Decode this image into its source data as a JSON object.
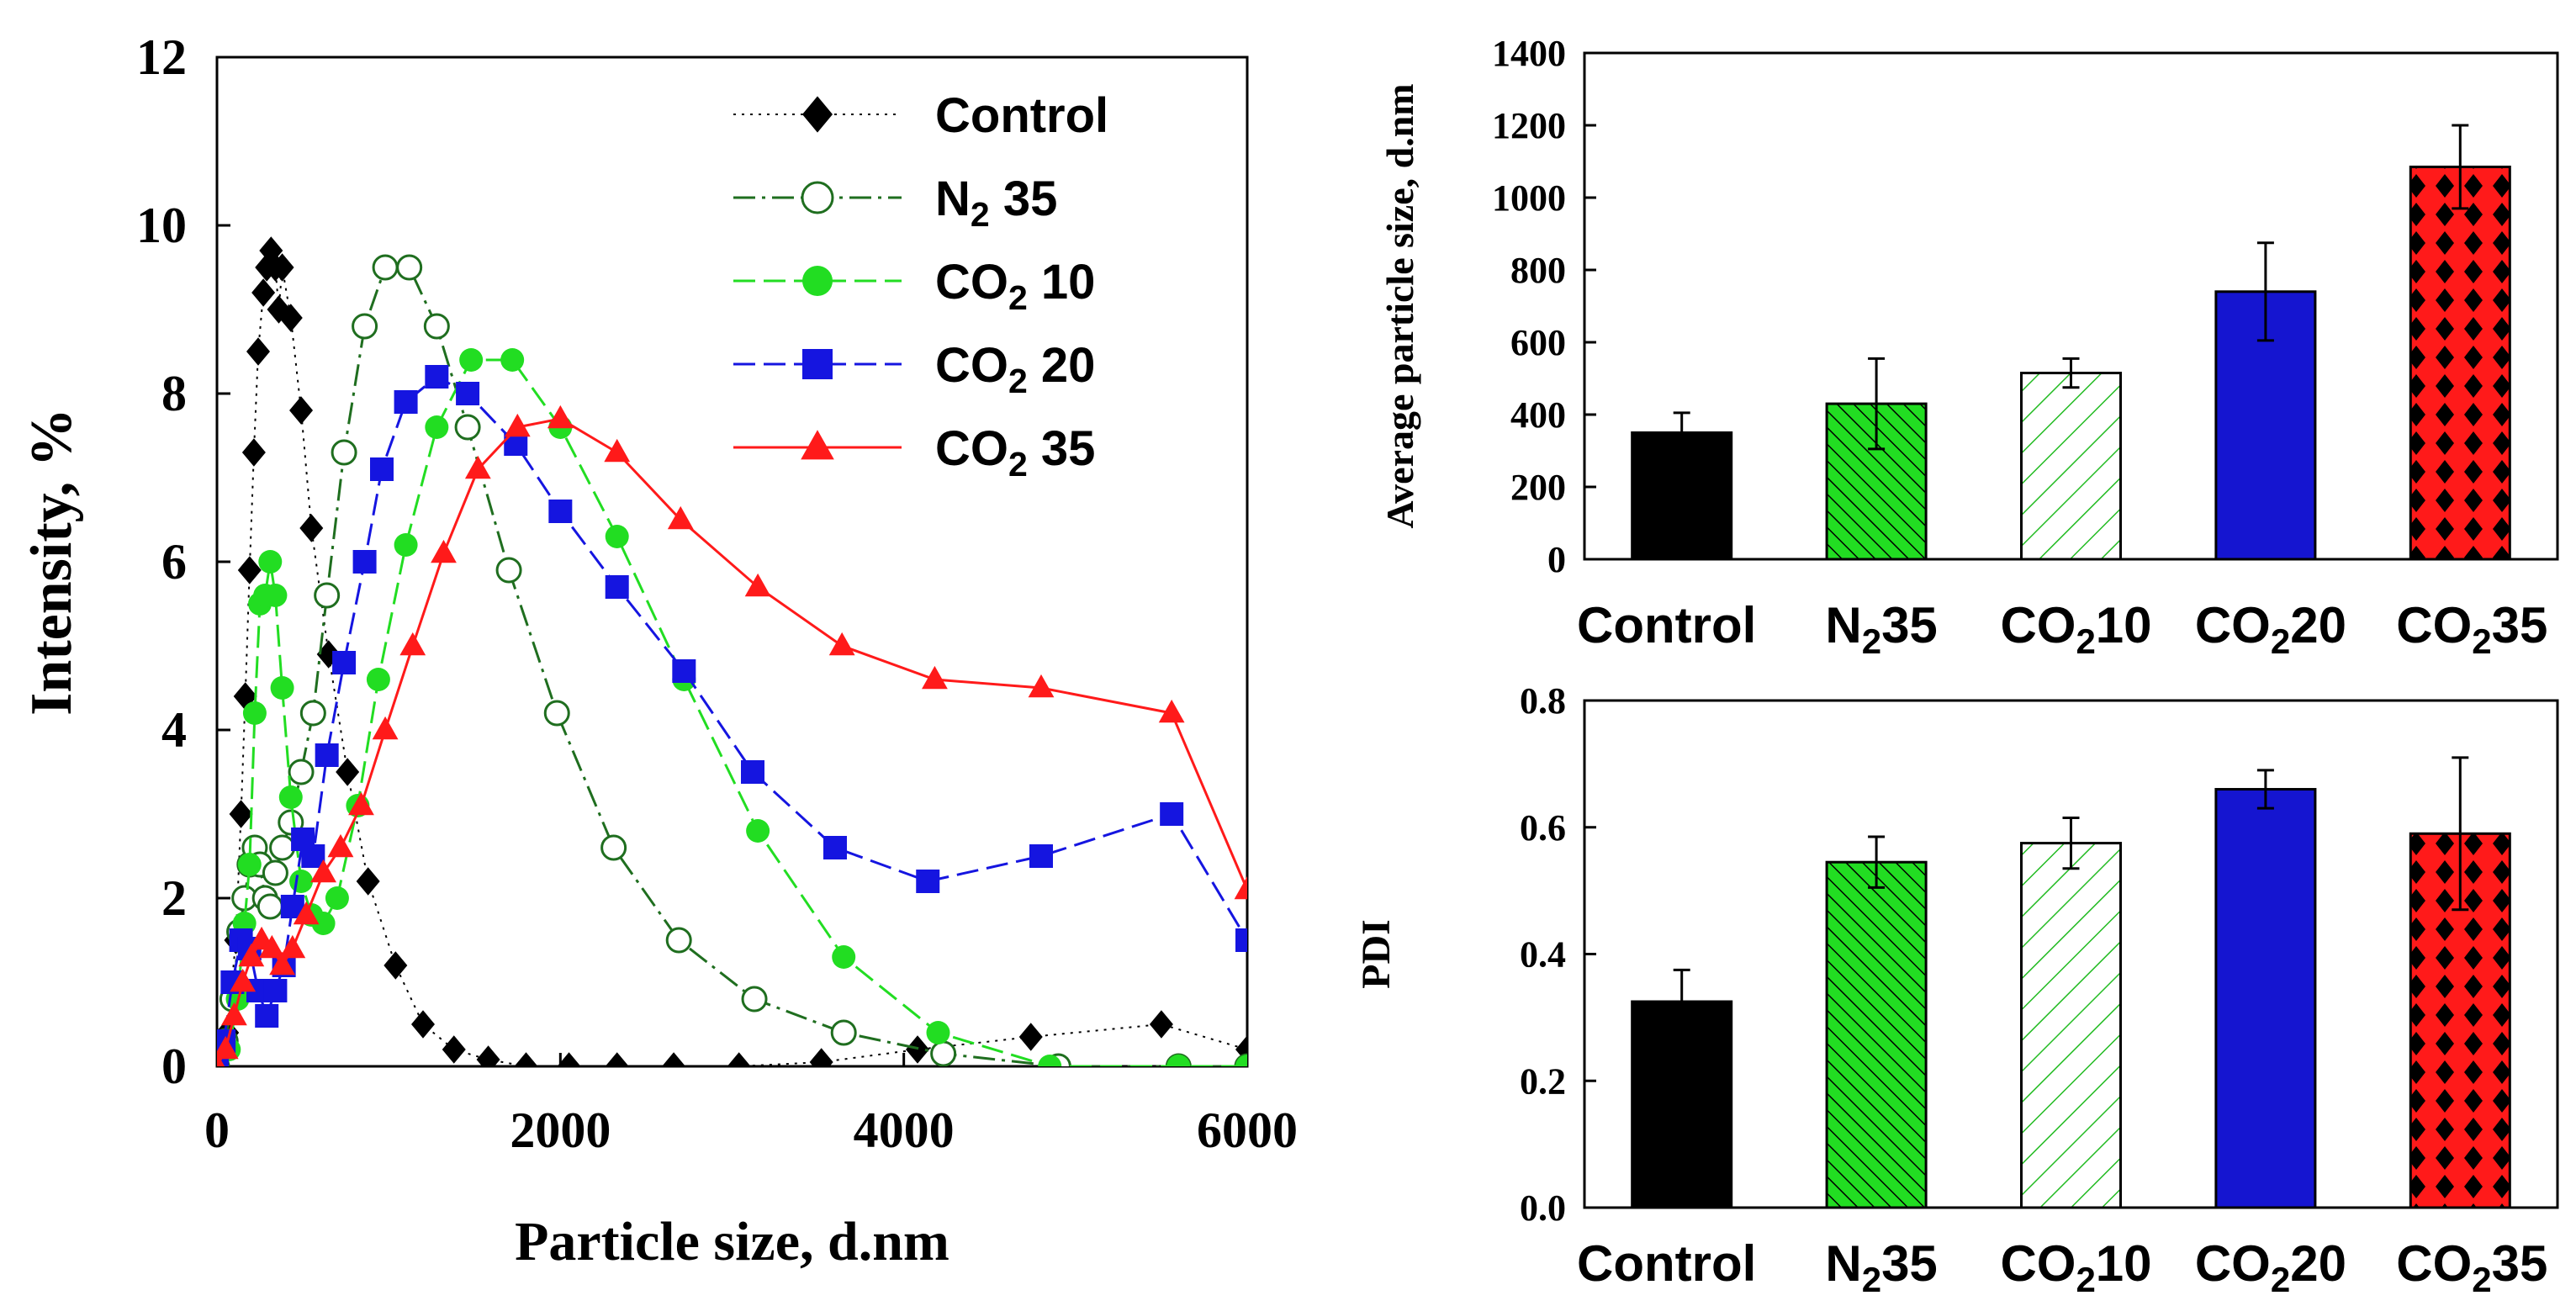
{
  "chart_data": [
    {
      "id": "distribution",
      "type": "line",
      "xlabel": "Particle size, d.nm",
      "ylabel": "Intensity, %",
      "xlim": [
        0,
        6000
      ],
      "ylim": [
        0,
        12
      ],
      "xticks": [
        0,
        2000,
        4000,
        6000
      ],
      "yticks": [
        0,
        2,
        4,
        6,
        8,
        10,
        12
      ],
      "legend_position": "top-right",
      "series": [
        {
          "name": "Control",
          "legend": {
            "base": "Control",
            "sub": "",
            "suffix": ""
          },
          "color": "#000000",
          "marker": "diamond",
          "dash": "dot",
          "x": [
            0,
            60,
            110,
            140,
            165,
            190,
            215,
            240,
            270,
            290,
            315,
            340,
            360,
            380,
            430,
            490,
            550,
            650,
            760,
            880,
            1040,
            1200,
            1380,
            1580,
            1800,
            2050,
            2330,
            2660,
            3040,
            3520,
            4080,
            4740,
            5500,
            6000
          ],
          "y": [
            0,
            0.4,
            1.5,
            3.0,
            4.4,
            5.9,
            7.3,
            8.5,
            9.2,
            9.5,
            9.7,
            9.5,
            9.0,
            9.5,
            8.9,
            7.8,
            6.4,
            4.9,
            3.5,
            2.2,
            1.2,
            0.5,
            0.2,
            0.08,
            0,
            0,
            0,
            0,
            0,
            0.05,
            0.2,
            0.35,
            0.5,
            0.2
          ]
        },
        {
          "name": "N2 35",
          "legend": {
            "base": "N",
            "sub": "2",
            "suffix": " 35"
          },
          "color": "#1f6e1f",
          "marker": "circle-open",
          "dash": "dashdot",
          "x": [
            0,
            50,
            90,
            130,
            160,
            190,
            220,
            250,
            280,
            310,
            340,
            380,
            430,
            490,
            560,
            640,
            740,
            860,
            980,
            1120,
            1280,
            1460,
            1700,
            1980,
            2310,
            2690,
            3130,
            3650,
            4230,
            4900,
            5600,
            6000
          ],
          "y": [
            0,
            0.3,
            0.8,
            1.6,
            2.0,
            2.4,
            2.6,
            2.4,
            2.0,
            1.9,
            2.3,
            2.6,
            2.9,
            3.5,
            4.2,
            5.6,
            7.3,
            8.8,
            9.5,
            9.5,
            8.8,
            7.6,
            5.9,
            4.2,
            2.6,
            1.5,
            0.8,
            0.4,
            0.15,
            0,
            0,
            0
          ]
        },
        {
          "name": "CO2 10",
          "legend": {
            "base": "CO",
            "sub": "2",
            "suffix": " 10"
          },
          "color": "#22dd22",
          "marker": "circle",
          "dash": "dash",
          "x": [
            0,
            70,
            120,
            160,
            190,
            220,
            250,
            280,
            310,
            340,
            380,
            430,
            490,
            550,
            620,
            700,
            820,
            940,
            1100,
            1280,
            1480,
            1720,
            2000,
            2330,
            2720,
            3150,
            3650,
            4200,
            4850,
            5600,
            6000
          ],
          "y": [
            0,
            0.2,
            0.8,
            1.7,
            2.4,
            4.2,
            5.5,
            5.6,
            6.0,
            5.6,
            4.5,
            3.2,
            2.2,
            1.8,
            1.7,
            2.0,
            3.1,
            4.6,
            6.2,
            7.6,
            8.4,
            8.4,
            7.6,
            6.3,
            4.6,
            2.8,
            1.3,
            0.4,
            0,
            0,
            0
          ]
        },
        {
          "name": "CO2 20",
          "legend": {
            "base": "CO",
            "sub": "2",
            "suffix": " 20"
          },
          "color": "#1515e0",
          "marker": "square",
          "dash": "dash",
          "x": [
            0,
            40,
            90,
            140,
            190,
            240,
            290,
            340,
            390,
            440,
            500,
            560,
            640,
            740,
            860,
            960,
            1100,
            1280,
            1460,
            1740,
            2000,
            2330,
            2720,
            3120,
            3600,
            4140,
            4800,
            5560,
            6000
          ],
          "y": [
            0,
            0.3,
            1.0,
            1.5,
            1.4,
            0.9,
            0.6,
            0.9,
            1.2,
            1.9,
            2.7,
            2.5,
            3.7,
            4.8,
            6.0,
            7.1,
            7.9,
            8.2,
            8.0,
            7.4,
            6.6,
            5.7,
            4.7,
            3.5,
            2.6,
            2.2,
            2.5,
            3.0,
            1.5
          ]
        },
        {
          "name": "CO2 35",
          "legend": {
            "base": "CO",
            "sub": "2",
            "suffix": " 35"
          },
          "color": "#ff1a1a",
          "marker": "triangle",
          "dash": "solid",
          "x": [
            0,
            50,
            100,
            150,
            200,
            260,
            320,
            380,
            440,
            520,
            620,
            720,
            840,
            980,
            1140,
            1320,
            1520,
            1750,
            2000,
            2330,
            2700,
            3150,
            3640,
            4180,
            4800,
            5560,
            6000
          ],
          "y": [
            0,
            0.2,
            0.6,
            1.0,
            1.3,
            1.5,
            1.4,
            1.2,
            1.4,
            1.8,
            2.3,
            2.6,
            3.1,
            4.0,
            5.0,
            6.1,
            7.1,
            7.6,
            7.7,
            7.3,
            6.5,
            5.7,
            5.0,
            4.6,
            4.5,
            4.2,
            2.1
          ]
        }
      ]
    },
    {
      "id": "average-size",
      "type": "bar",
      "ylabel": "Average particle size, d.nm",
      "ylim": [
        0,
        1400
      ],
      "yticks": [
        0,
        200,
        400,
        600,
        800,
        1000,
        1200,
        1400
      ],
      "categories": [
        {
          "base": "Control",
          "sub": "",
          "suffix": ""
        },
        {
          "base": "N",
          "sub": "2",
          "suffix": "35"
        },
        {
          "base": "CO",
          "sub": "2",
          "suffix": "10"
        },
        {
          "base": "CO",
          "sub": "2",
          "suffix": "20"
        },
        {
          "base": "CO",
          "sub": "2",
          "suffix": "35"
        }
      ],
      "values": [
        350,
        430,
        515,
        740,
        1085
      ],
      "errors": [
        55,
        125,
        40,
        135,
        115
      ]
    },
    {
      "id": "pdi",
      "type": "bar",
      "ylabel": "PDI",
      "ylim": [
        0,
        0.8
      ],
      "yticks": [
        0.0,
        0.2,
        0.4,
        0.6,
        0.8
      ],
      "categories": [
        {
          "base": "Control",
          "sub": "",
          "suffix": ""
        },
        {
          "base": "N",
          "sub": "2",
          "suffix": "35"
        },
        {
          "base": "CO",
          "sub": "2",
          "suffix": "10"
        },
        {
          "base": "CO",
          "sub": "2",
          "suffix": "20"
        },
        {
          "base": "CO",
          "sub": "2",
          "suffix": "35"
        }
      ],
      "values": [
        0.325,
        0.545,
        0.575,
        0.66,
        0.59
      ],
      "errors": [
        0.05,
        0.04,
        0.04,
        0.03,
        0.12
      ]
    }
  ],
  "bar_styles": [
    {
      "fill": "#000000",
      "pattern": "solid"
    },
    {
      "fill": "#22dd22",
      "pattern": "hatch-dense"
    },
    {
      "fill": "#22cc22",
      "pattern": "hatch-sparse"
    },
    {
      "fill": "#1515d0",
      "pattern": "solid"
    },
    {
      "fill": "#ff1a1a",
      "pattern": "diamonds"
    }
  ]
}
